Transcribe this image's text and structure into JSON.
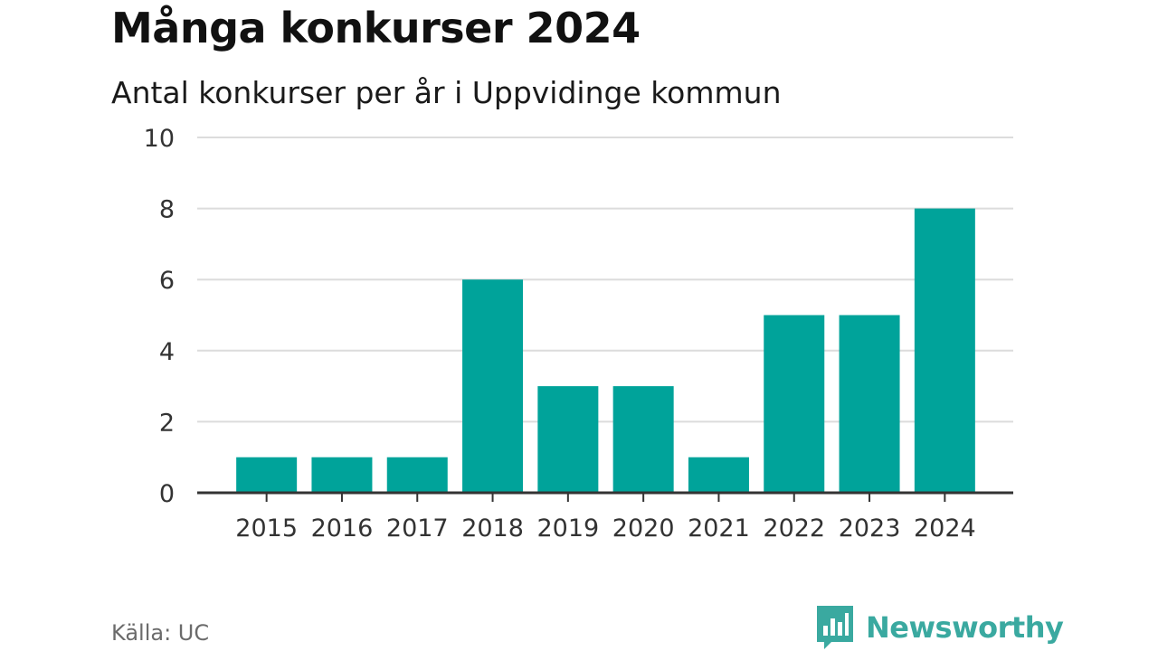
{
  "header": {
    "title": "Många konkurser 2024",
    "subtitle": "Antal konkurser per år i Uppvidinge kommun"
  },
  "footer": {
    "source": "Källa: UC",
    "brand": "Newsworthy",
    "brand_logo_icon": "bar-chart-speech-bubble-icon"
  },
  "colors": {
    "bar": "#00a39a",
    "brand": "#3aa9a0",
    "gridline": "#dcdcdc",
    "axis": "#333333",
    "text": "#333333"
  },
  "chart_data": {
    "type": "bar",
    "title": "Många konkurser 2024",
    "subtitle": "Antal konkurser per år i Uppvidinge kommun",
    "xlabel": "",
    "ylabel": "",
    "categories": [
      "2015",
      "2016",
      "2017",
      "2018",
      "2019",
      "2020",
      "2021",
      "2022",
      "2023",
      "2024"
    ],
    "values": [
      1,
      1,
      1,
      6,
      3,
      3,
      1,
      5,
      5,
      8
    ],
    "ylim": [
      0,
      10
    ],
    "yticks": [
      0,
      2,
      4,
      6,
      8,
      10
    ],
    "grid": true,
    "legend": "none"
  }
}
